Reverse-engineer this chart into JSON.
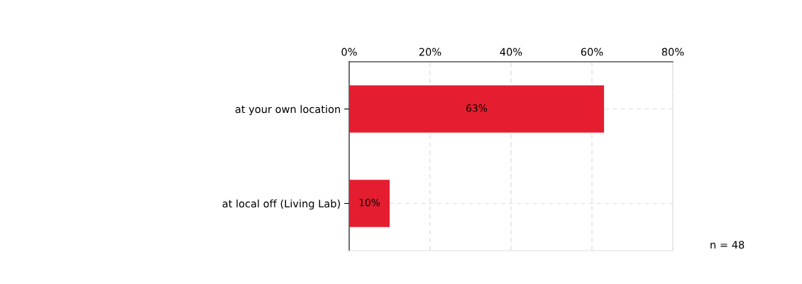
{
  "chart_data": {
    "type": "bar",
    "orientation": "horizontal",
    "categories": [
      "at your own location",
      "at local off (Living Lab)"
    ],
    "values": [
      63,
      10
    ],
    "value_labels": [
      "63%",
      "10%"
    ],
    "color": "#e41e30",
    "xlim": [
      0,
      80
    ],
    "xticks": [
      {
        "value": 0,
        "label": "0%"
      },
      {
        "value": 20,
        "label": "20%"
      },
      {
        "value": 40,
        "label": "40%"
      },
      {
        "value": 60,
        "label": "60%"
      },
      {
        "value": 80,
        "label": "80%"
      }
    ],
    "grid": true,
    "annotations": [
      "n = 48"
    ]
  }
}
